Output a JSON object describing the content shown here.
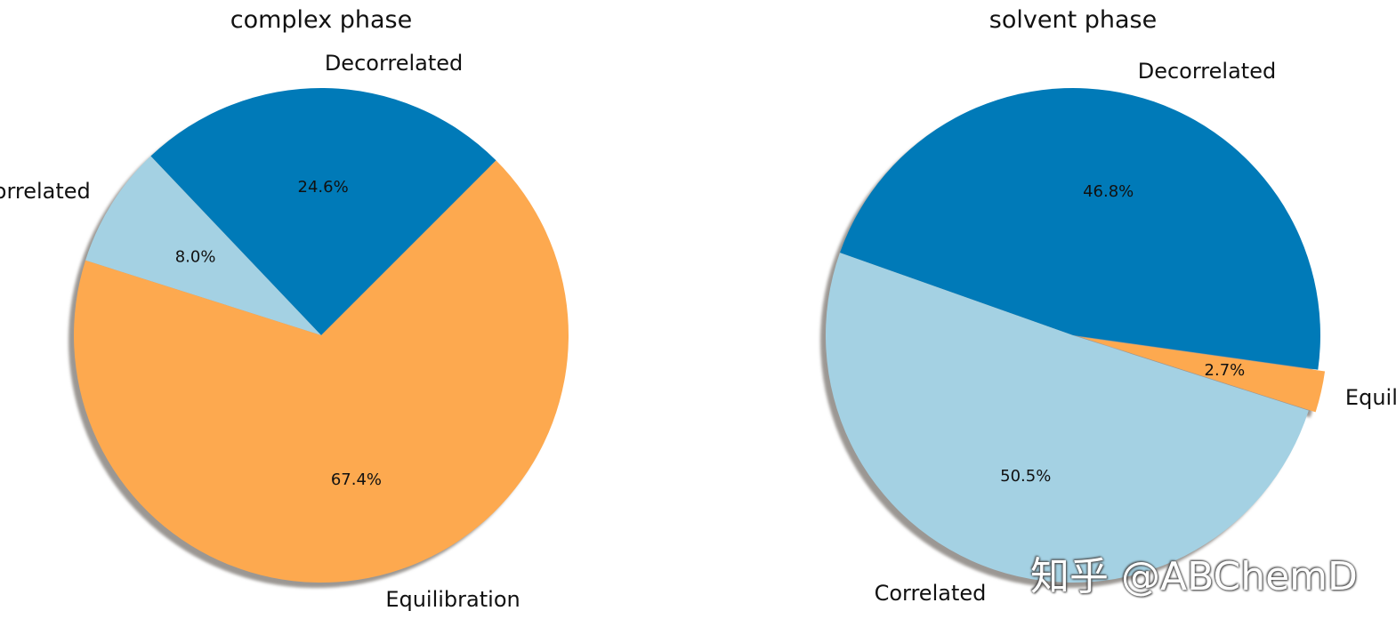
{
  "chart_data": [
    {
      "type": "pie",
      "title": "complex phase",
      "slices": [
        {
          "label": "Decorrelated",
          "value": 24.6,
          "pct_label": "24.6%",
          "color": "#007ab8"
        },
        {
          "label": "Correlated",
          "value": 8.0,
          "pct_label": "8.0%",
          "color": "#a4d1e3"
        },
        {
          "label": "Equilibration",
          "value": 67.4,
          "pct_label": "67.4%",
          "color": "#fda94f"
        }
      ],
      "shadow": true,
      "legend": "none"
    },
    {
      "type": "pie",
      "title": "solvent phase",
      "slices": [
        {
          "label": "Decorrelated",
          "value": 46.8,
          "pct_label": "46.8%",
          "color": "#007ab8"
        },
        {
          "label": "Correlated",
          "value": 50.5,
          "pct_label": "50.5%",
          "color": "#a4d1e3"
        },
        {
          "label": "Equilibration",
          "value": 2.7,
          "pct_label": "2.7%",
          "color": "#fda94f"
        }
      ],
      "shadow": true,
      "legend": "none"
    }
  ],
  "watermark": "知乎 @ABChemD"
}
